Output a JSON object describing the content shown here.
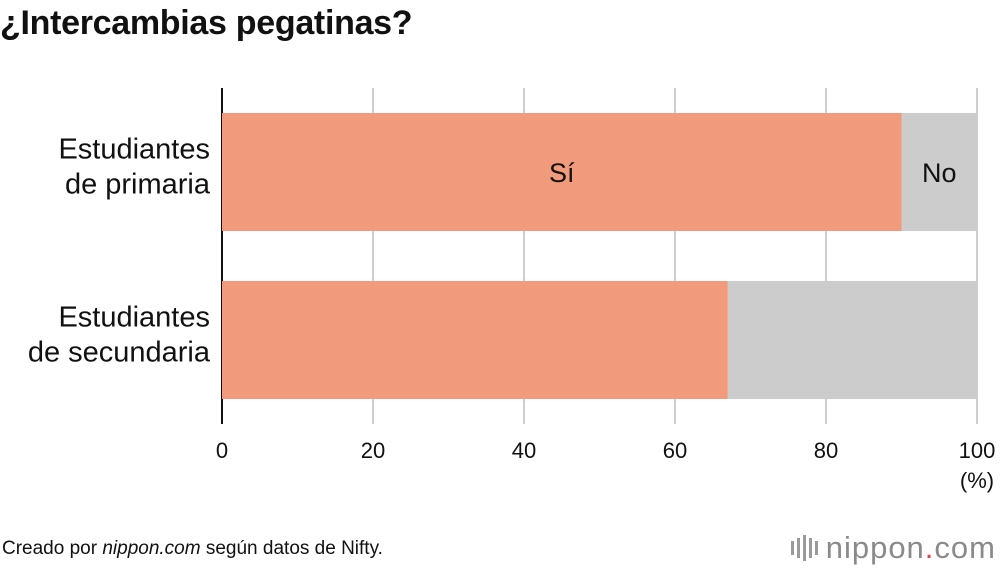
{
  "chart_data": {
    "type": "bar",
    "orientation": "horizontal",
    "stacked": true,
    "title": "¿Intercambias pegatinas?",
    "categories": [
      [
        "Estudiantes",
        "de primaria"
      ],
      [
        "Estudiantes",
        "de secundaria"
      ]
    ],
    "series": [
      {
        "name": "Sí",
        "color": "#f29b7c",
        "values": [
          90,
          67
        ]
      },
      {
        "name": "No",
        "color": "#cccccc",
        "values": [
          10,
          33
        ]
      }
    ],
    "xlim": [
      0,
      100
    ],
    "xticks": [
      "0",
      "20",
      "40",
      "60",
      "80",
      "100"
    ],
    "xunit": "(%)",
    "grid": true
  },
  "footer": {
    "prefix": "Creado por ",
    "source": "nippon.com",
    "suffix": " según datos de Nifty."
  },
  "brand": {
    "name": "nippon",
    "dot": ".",
    "tld": "com"
  }
}
